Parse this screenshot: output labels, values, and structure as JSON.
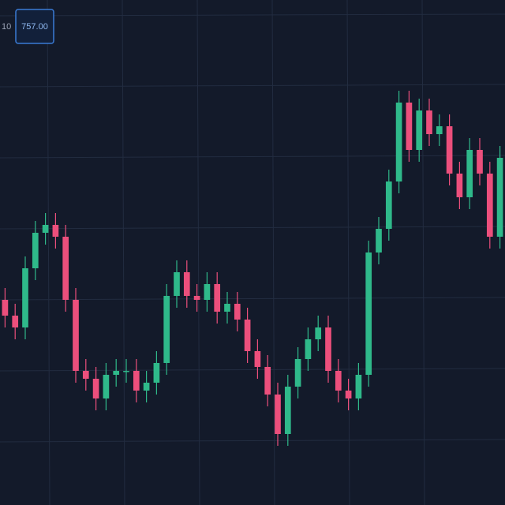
{
  "chart_data": {
    "type": "candlestick",
    "price_label": "757.00",
    "edge_label": "10",
    "up_color": "#2fb98a",
    "down_color": "#ec4f7c",
    "ylim": [
      700,
      764
    ],
    "ohlc": [
      [
        726,
        727.5,
        722.5,
        724
      ],
      [
        724,
        725.5,
        721,
        722.5
      ],
      [
        722.5,
        731.5,
        721,
        730
      ],
      [
        730,
        736,
        728.5,
        734.5
      ],
      [
        734.5,
        737,
        733,
        735.5
      ],
      [
        735.5,
        737,
        732.5,
        734
      ],
      [
        734,
        735.5,
        724.5,
        726
      ],
      [
        726,
        727.5,
        715.5,
        717
      ],
      [
        717,
        718.5,
        714.5,
        716
      ],
      [
        716,
        717.5,
        712,
        713.5
      ],
      [
        713.5,
        718,
        712,
        716.5
      ],
      [
        716.5,
        718.5,
        715,
        717
      ],
      [
        717,
        718.5,
        715.5,
        717
      ],
      [
        717,
        718.5,
        713,
        714.5
      ],
      [
        714.5,
        717,
        713,
        715.5
      ],
      [
        715.5,
        719.5,
        714,
        718
      ],
      [
        718,
        728,
        716.5,
        726.5
      ],
      [
        726.5,
        731,
        725,
        729.5
      ],
      [
        729.5,
        731,
        725,
        726.5
      ],
      [
        726.5,
        728,
        724.5,
        726
      ],
      [
        726,
        729.5,
        724.5,
        728
      ],
      [
        728,
        729.5,
        723,
        724.5
      ],
      [
        724.5,
        727,
        723,
        725.5
      ],
      [
        725.5,
        727,
        722,
        723.5
      ],
      [
        723.5,
        725,
        718,
        719.5
      ],
      [
        719.5,
        721,
        716,
        717.5
      ],
      [
        717.5,
        719,
        712.5,
        714
      ],
      [
        714,
        715.5,
        707.5,
        709
      ],
      [
        709,
        716.5,
        707.5,
        715
      ],
      [
        715,
        720,
        713.5,
        718.5
      ],
      [
        718.5,
        722.5,
        717,
        721
      ],
      [
        721,
        724,
        719.5,
        722.5
      ],
      [
        722.5,
        724,
        715.5,
        717
      ],
      [
        717,
        718.5,
        713,
        714.5
      ],
      [
        714.5,
        716,
        712,
        713.5
      ],
      [
        713.5,
        718,
        712,
        716.5
      ],
      [
        716.5,
        733.5,
        715,
        732
      ],
      [
        732,
        736.5,
        730.5,
        735
      ],
      [
        735,
        742.5,
        733.5,
        741
      ],
      [
        741,
        752.5,
        739.5,
        751
      ],
      [
        751,
        752.5,
        743.5,
        745
      ],
      [
        745,
        751.5,
        743.5,
        750
      ],
      [
        750,
        751.5,
        745.5,
        747
      ],
      [
        747,
        749.5,
        745.5,
        748
      ],
      [
        748,
        749.5,
        740.5,
        742
      ],
      [
        742,
        743.5,
        737.5,
        739
      ],
      [
        739,
        746.5,
        737.5,
        745
      ],
      [
        745,
        746.5,
        740.5,
        742
      ],
      [
        742,
        743.5,
        732.5,
        734
      ],
      [
        734,
        745.5,
        732.5,
        744
      ]
    ]
  }
}
